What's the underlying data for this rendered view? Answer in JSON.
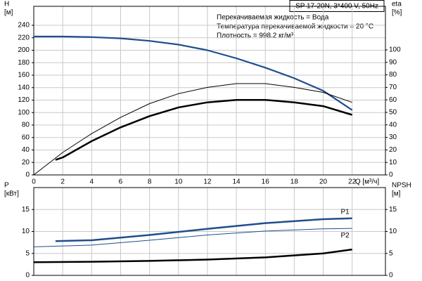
{
  "chart_data": [
    {
      "type": "line",
      "title": "SP 17-20N, 3*400 V, 50Hz",
      "annotations": [
        "Перекачиваемая жидкость = Вода",
        "Температура перекачиваемой жидкости = 20 °C",
        "Плотность = 998.2 кг/м³"
      ],
      "y_label": [
        "H",
        "[м]"
      ],
      "y2_label": [
        "eta",
        "[%]"
      ],
      "x_label": "Q [м³/ч]",
      "xlim": [
        0,
        24.3
      ],
      "xticks": [
        0,
        2,
        4,
        6,
        8,
        10,
        12,
        14,
        16,
        18,
        20,
        22
      ],
      "ylim": [
        0,
        270.4
      ],
      "yticks": [
        0,
        20,
        40,
        60,
        80,
        100,
        120,
        140,
        160,
        180,
        200,
        220,
        240
      ],
      "y2lim": [
        0,
        134.8
      ],
      "y2ticks": [
        0,
        10,
        20,
        30,
        40,
        50,
        60,
        70,
        80,
        90,
        100
      ],
      "grid": true,
      "series": [
        {
          "color": "#1f4e8c",
          "line_width": 2.2,
          "x": [
            0,
            1.5,
            2,
            4,
            6,
            8,
            10,
            12,
            14,
            16,
            18,
            20,
            22
          ],
          "values": [
            222,
            222,
            222,
            221,
            219,
            215,
            209,
            200,
            187,
            172,
            155,
            135,
            104
          ]
        },
        {
          "color": "#000000",
          "line_width": 1,
          "axis": "y2",
          "x": [
            0,
            2,
            4,
            6,
            8,
            10,
            12,
            14,
            16,
            18,
            20,
            22
          ],
          "values": [
            0,
            18,
            33,
            46,
            57,
            65,
            70,
            73,
            73,
            70,
            66,
            58
          ]
        },
        {
          "color": "#000000",
          "line_width": 2.5,
          "axis": "y2",
          "x": [
            1.5,
            2,
            4,
            6,
            8,
            10,
            12,
            14,
            16,
            18,
            20,
            22
          ],
          "values": [
            12,
            14,
            27,
            38,
            47,
            54,
            58,
            60,
            60,
            58,
            55,
            48
          ]
        }
      ]
    },
    {
      "type": "line",
      "y_label": [
        "P",
        "[кВт]"
      ],
      "y2_label": [
        "NPSH",
        "[м]"
      ],
      "xlim": [
        0,
        24.3
      ],
      "ylim": [
        0,
        20
      ],
      "yticks": [
        0,
        5,
        10,
        15
      ],
      "y2lim": [
        0,
        20
      ],
      "y2ticks": [
        0,
        5,
        10,
        15
      ],
      "grid": true,
      "series": [
        {
          "name": "P1",
          "color": "#1f4e8c",
          "line_width": 2.5,
          "x": [
            1.5,
            4,
            8,
            12,
            16,
            20,
            22
          ],
          "values": [
            7.8,
            8.0,
            9.2,
            10.6,
            11.9,
            12.8,
            13.0
          ]
        },
        {
          "name": "P2",
          "color": "#1f4e8c",
          "line_width": 1,
          "x": [
            0,
            4,
            8,
            12,
            16,
            20,
            22
          ],
          "values": [
            6.5,
            6.9,
            8.0,
            9.2,
            10.1,
            10.6,
            10.7
          ]
        },
        {
          "color": "#000000",
          "line_width": 2.5,
          "axis": "y2",
          "x": [
            0,
            4,
            8,
            12,
            16,
            20,
            22
          ],
          "values": [
            3.0,
            3.1,
            3.3,
            3.6,
            4.1,
            5.0,
            5.9
          ]
        }
      ]
    }
  ]
}
